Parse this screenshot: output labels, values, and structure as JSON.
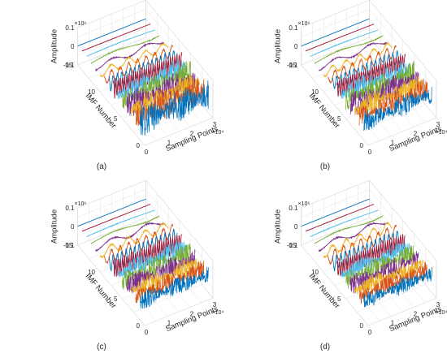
{
  "colors": [
    "#0072BD",
    "#D95319",
    "#EDB120",
    "#7E2F8E",
    "#77AC30",
    "#4DBEEE",
    "#A2142F"
  ],
  "chart_data": [
    {
      "type": "line",
      "panel": "a",
      "caption": "(a)",
      "xlabel": "Sampling Points",
      "ylabel": "IMF Number",
      "zlabel": "Amplitude",
      "x_multiplier": "×10⁴",
      "z_multiplier": "×10⁶",
      "xticks": [
        "0",
        "1",
        "2",
        "3"
      ],
      "yticks": [
        "0",
        "5",
        "10",
        "15"
      ],
      "zticks": [
        "0.1",
        "0",
        "-0.1"
      ],
      "xlim": [
        0,
        3
      ],
      "ylim": [
        0,
        15
      ],
      "zlim": [
        -0.1,
        0.1
      ],
      "grid": true,
      "imf_count": 15,
      "amplitudes": [
        0.09,
        0.085,
        0.08,
        0.075,
        0.07,
        0.065,
        0.055,
        0.045,
        0.035,
        0.025,
        0.018,
        0.012,
        0.008,
        0.004,
        0.002
      ],
      "periods": [
        0.0015,
        0.003,
        0.006,
        0.012,
        0.024,
        0.048,
        0.096,
        0.19,
        0.38,
        0.75,
        1.5,
        3,
        6,
        12,
        24
      ]
    },
    {
      "type": "line",
      "panel": "b",
      "caption": "(b)",
      "xlabel": "Sampling Points",
      "ylabel": "IMF Number",
      "zlabel": "Amplitude",
      "x_multiplier": "×10⁴",
      "z_multiplier": "×10⁶",
      "xticks": [
        "0",
        "1",
        "2",
        "3"
      ],
      "yticks": [
        "0",
        "5",
        "10",
        "15"
      ],
      "zticks": [
        "0.1",
        "0",
        "-0.1"
      ],
      "xlim": [
        0,
        3
      ],
      "ylim": [
        0,
        15
      ],
      "zlim": [
        -0.1,
        0.1
      ],
      "grid": true,
      "imf_count": 15,
      "amplitudes": [
        0.06,
        0.06,
        0.065,
        0.07,
        0.065,
        0.06,
        0.05,
        0.04,
        0.035,
        0.025,
        0.018,
        0.012,
        0.008,
        0.004,
        0.002
      ],
      "periods": [
        0.0015,
        0.003,
        0.006,
        0.012,
        0.024,
        0.048,
        0.096,
        0.19,
        0.38,
        0.6,
        1.5,
        3,
        6,
        12,
        24
      ]
    },
    {
      "type": "line",
      "panel": "c",
      "caption": "(c)",
      "xlabel": "Sampling Points",
      "ylabel": "IMF Number",
      "zlabel": "Amplitude",
      "x_multiplier": "×10⁴",
      "z_multiplier": "×10⁶",
      "xticks": [
        "0",
        "1",
        "2",
        "3"
      ],
      "yticks": [
        "0",
        "5",
        "10",
        "15"
      ],
      "zticks": [
        "0.1",
        "0",
        "-0.1"
      ],
      "xlim": [
        0,
        3
      ],
      "ylim": [
        0,
        15
      ],
      "zlim": [
        -0.1,
        0.1
      ],
      "grid": true,
      "imf_count": 15,
      "amplitudes": [
        0.05,
        0.05,
        0.055,
        0.06,
        0.065,
        0.06,
        0.055,
        0.05,
        0.04,
        0.03,
        0.02,
        0.012,
        0.008,
        0.004,
        0.002
      ],
      "periods": [
        0.0015,
        0.003,
        0.006,
        0.012,
        0.024,
        0.048,
        0.096,
        0.19,
        0.38,
        0.75,
        1.5,
        3,
        6,
        12,
        24
      ]
    },
    {
      "type": "line",
      "panel": "d",
      "caption": "(d)",
      "xlabel": "Sampling Points",
      "ylabel": "IMF Number",
      "zlabel": "Amplitude",
      "x_multiplier": "×10⁴",
      "z_multiplier": "×10⁶",
      "xticks": [
        "0",
        "1",
        "2",
        "3"
      ],
      "yticks": [
        "0",
        "5",
        "10",
        "15"
      ],
      "zticks": [
        "0.1",
        "0",
        "-0.1"
      ],
      "xlim": [
        0,
        3
      ],
      "ylim": [
        0,
        15
      ],
      "zlim": [
        -0.1,
        0.1
      ],
      "grid": true,
      "imf_count": 15,
      "amplitudes": [
        0.045,
        0.05,
        0.05,
        0.055,
        0.055,
        0.05,
        0.05,
        0.045,
        0.04,
        0.03,
        0.02,
        0.012,
        0.008,
        0.004,
        0.002
      ],
      "periods": [
        0.0015,
        0.003,
        0.006,
        0.012,
        0.024,
        0.048,
        0.096,
        0.19,
        0.38,
        0.6,
        1.5,
        3,
        6,
        12,
        24
      ]
    }
  ]
}
